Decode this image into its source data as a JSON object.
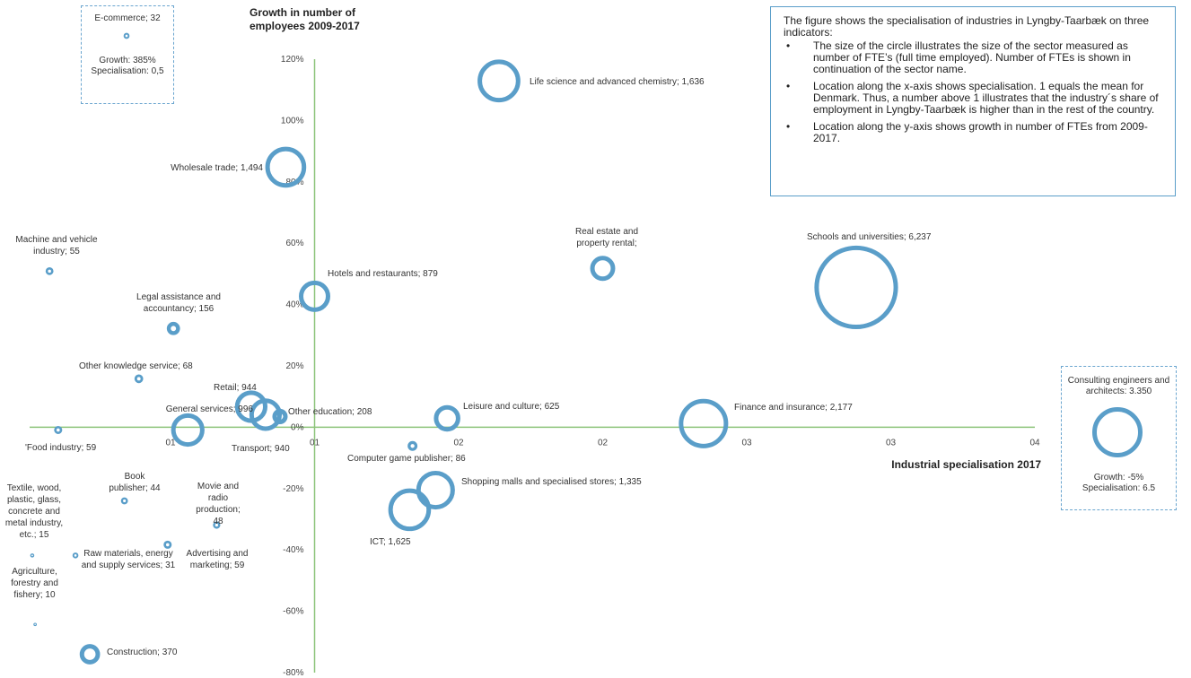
{
  "chart_data": {
    "type": "bubble",
    "y_title": "Growth in number of employees 2009-2017",
    "x_title": "Industrial specialisation 2017",
    "color": "#5a9ec9",
    "axis_color": "#8dc47a",
    "xlim": [
      0,
      3.5
    ],
    "ylim": [
      -80,
      120
    ],
    "xticks": [
      {
        "value": 0.5,
        "label": "01"
      },
      {
        "value": 1,
        "label": "01"
      },
      {
        "value": 1.5,
        "label": "02"
      },
      {
        "value": 2,
        "label": "02"
      },
      {
        "value": 2.5,
        "label": "03"
      },
      {
        "value": 3,
        "label": "03"
      },
      {
        "value": 3.5,
        "label": "04"
      }
    ],
    "yticks": [
      {
        "value": -80,
        "label": "-80%"
      },
      {
        "value": -60,
        "label": "-60%"
      },
      {
        "value": -40,
        "label": "-40%"
      },
      {
        "value": -20,
        "label": "-20%"
      },
      {
        "value": 0,
        "label": "0%"
      },
      {
        "value": 20,
        "label": "20%"
      },
      {
        "value": 40,
        "label": "40%"
      },
      {
        "value": 60,
        "label": "60%"
      },
      {
        "value": 80,
        "label": "80%"
      },
      {
        "value": 100,
        "label": "100%"
      },
      {
        "value": 120,
        "label": "120%"
      }
    ],
    "points": [
      {
        "label": "Life science and advanced chemistry; 1,636",
        "x": 1.64,
        "y": 112.9,
        "size": 1636
      },
      {
        "label": "Wholesale trade; 1,494",
        "x": 0.9,
        "y": 84.8,
        "size": 1494
      },
      {
        "label": "Machine and vehicle industry; 55",
        "x": 0.08,
        "y": 50.9,
        "size": 55
      },
      {
        "label": "Real estate and property rental;",
        "x": 2.0,
        "y": 51.8,
        "size": 560
      },
      {
        "label": "Schools and universities; 6,237",
        "x": 2.88,
        "y": 45.6,
        "size": 6237
      },
      {
        "label": "Hotels and restaurants; 879",
        "x": 1.0,
        "y": 42.7,
        "size": 879
      },
      {
        "label": "Legal assistance and accountancy; 156",
        "x": 0.51,
        "y": 32.2,
        "size": 156
      },
      {
        "label": "Other knowledge service; 68",
        "x": 0.39,
        "y": 15.8,
        "size": 68
      },
      {
        "label": "Retail; 944",
        "x": 0.78,
        "y": 6.7,
        "size": 944
      },
      {
        "label": "General services; 996",
        "x": 0.56,
        "y": -0.9,
        "size": 996
      },
      {
        "label": "Transport; 940",
        "x": 0.83,
        "y": 4.1,
        "size": 940
      },
      {
        "label": "Other education; 208",
        "x": 0.88,
        "y": 3.5,
        "size": 208
      },
      {
        "label": "Leisure and culture; 625",
        "x": 1.46,
        "y": 2.9,
        "size": 625
      },
      {
        "label": "Finance and insurance; 2,177",
        "x": 2.35,
        "y": 1.2,
        "size": 2177
      },
      {
        "label": "'Food industry; 59",
        "x": 0.11,
        "y": -0.9,
        "size": 59
      },
      {
        "label": "Computer game publisher; 86",
        "x": 1.34,
        "y": -6.1,
        "size": 86
      },
      {
        "label": "Shopping malls and specialised stores; 1,335",
        "x": 1.42,
        "y": -20.5,
        "size": 1335
      },
      {
        "label": "ICT; 1,625",
        "x": 1.33,
        "y": -26.9,
        "size": 1625
      },
      {
        "label": "Book publisher; 44",
        "x": 0.34,
        "y": -24.0,
        "size": 44
      },
      {
        "label": "Movie and radio production; 48",
        "x": 0.66,
        "y": -31.9,
        "size": 48
      },
      {
        "label": "Advertising and marketing; 59",
        "x": 0.49,
        "y": -38.3,
        "size": 59
      },
      {
        "label": "Textile, wood, plastic, glass, concrete and metal industry, etc.; 15",
        "x": 0.02,
        "y": -41.8,
        "size": 15
      },
      {
        "label": "Raw materials, energy and supply services; 31",
        "x": 0.17,
        "y": -41.8,
        "size": 31
      },
      {
        "label": "Agriculture, forestry and fishery; 10",
        "x": 0.03,
        "y": -64.3,
        "size": 10
      },
      {
        "label": "Construction; 370",
        "x": 0.22,
        "y": -74.0,
        "size": 370
      }
    ],
    "callouts": [
      {
        "label": "E-commerce; 32",
        "size": 32,
        "growth": "Growth: 385%",
        "specialisation": "Specialisation: 0,5"
      },
      {
        "label": "Consulting engineers and architects: 3.350",
        "size": 3350,
        "growth": "Growth: -5%",
        "specialisation": "Specialisation: 6.5"
      }
    ],
    "info": {
      "intro": "The figure shows the specialisation of industries in Lyngby-Taarbæk on three indicators:",
      "bullets": [
        "The size of the circle illustrates the size of the sector measured as number of FTE’s (full time employed). Number of FTEs is shown in continuation of the sector name.",
        "Location along the x-axis shows specialisation. 1 equals the mean for Denmark. Thus, a number above 1 illustrates that the industry´s share of employment in Lyngby-Taarbæk is higher than in the rest of the country.",
        "Location along the y-axis shows growth in number of FTEs from 2009-2017."
      ]
    }
  }
}
